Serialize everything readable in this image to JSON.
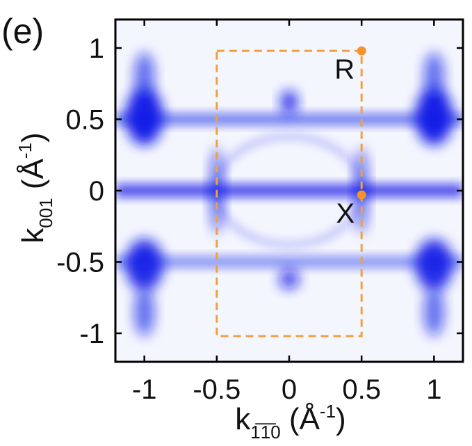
{
  "panel_label": "(e)",
  "colors": {
    "map": "#0a14e6",
    "bz": "#f0a040",
    "points": "#f5922a",
    "axis": "#000000"
  },
  "chart_data": {
    "type": "heatmap",
    "title": "",
    "xlabel": {
      "main": "k",
      "sub": "1̅1̅0",
      "unit": " (Å",
      "sup": "-1",
      "close": ")"
    },
    "ylabel": {
      "main": "k",
      "sub": "001",
      "unit": " (Å",
      "sup": "-1",
      "close": ")"
    },
    "xlim": [
      -1.2,
      1.2
    ],
    "ylim": [
      -1.2,
      1.2
    ],
    "xticks": [
      -1,
      -0.5,
      0,
      0.5,
      1
    ],
    "yticks": [
      1,
      0.5,
      0,
      -0.5,
      -1
    ],
    "xtick_labels": [
      "-1",
      "-0.5",
      "0",
      "0.5",
      "1"
    ],
    "ytick_labels": [
      "1",
      "0.5",
      "0",
      "-0.5",
      "-1"
    ],
    "brillouin_zone": {
      "x_range": [
        -0.5,
        0.5
      ],
      "y_range": [
        -1.02,
        0.98
      ],
      "style": "dashed"
    },
    "high_symmetry_points": [
      {
        "label": "R",
        "x": 0.5,
        "y": 0.98
      },
      {
        "label": "X",
        "x": 0.5,
        "y": -0.03
      }
    ],
    "intensity_features": [
      {
        "kind": "hband",
        "y": 0.5,
        "width": 0.08,
        "x_range": [
          -1.2,
          1.2
        ],
        "intensity": 0.55
      },
      {
        "kind": "hband",
        "y": -0.5,
        "width": 0.08,
        "x_range": [
          -1.2,
          1.2
        ],
        "intensity": 0.45
      },
      {
        "kind": "hband",
        "y": 0.0,
        "width": 0.09,
        "x_range": [
          -1.2,
          1.2
        ],
        "intensity": 0.75
      },
      {
        "kind": "spot",
        "x": -1.0,
        "y": 0.52,
        "rx": 0.13,
        "ry": 0.2,
        "intensity": 0.95
      },
      {
        "kind": "spot",
        "x": 1.0,
        "y": 0.52,
        "rx": 0.13,
        "ry": 0.2,
        "intensity": 0.95
      },
      {
        "kind": "spot",
        "x": -1.0,
        "y": -0.52,
        "rx": 0.13,
        "ry": 0.18,
        "intensity": 0.9
      },
      {
        "kind": "spot",
        "x": 1.0,
        "y": -0.52,
        "rx": 0.13,
        "ry": 0.18,
        "intensity": 0.9
      },
      {
        "kind": "spot",
        "x": -1.0,
        "y": 0.8,
        "rx": 0.07,
        "ry": 0.17,
        "intensity": 0.6
      },
      {
        "kind": "spot",
        "x": 1.0,
        "y": 0.8,
        "rx": 0.07,
        "ry": 0.17,
        "intensity": 0.6
      },
      {
        "kind": "spot",
        "x": -1.0,
        "y": -0.85,
        "rx": 0.07,
        "ry": 0.17,
        "intensity": 0.6
      },
      {
        "kind": "spot",
        "x": 1.0,
        "y": -0.85,
        "rx": 0.07,
        "ry": 0.17,
        "intensity": 0.6
      },
      {
        "kind": "spot",
        "x": 0.0,
        "y": 0.62,
        "rx": 0.06,
        "ry": 0.08,
        "intensity": 0.85
      },
      {
        "kind": "spot",
        "x": 0.0,
        "y": -0.62,
        "rx": 0.07,
        "ry": 0.07,
        "intensity": 0.75
      },
      {
        "kind": "spot",
        "x": -0.5,
        "y": 0.0,
        "rx": 0.05,
        "ry": 0.3,
        "intensity": 0.55
      },
      {
        "kind": "spot",
        "x": 0.5,
        "y": 0.0,
        "rx": 0.05,
        "ry": 0.3,
        "intensity": 0.55
      },
      {
        "kind": "ring",
        "x": 0.0,
        "y": 0.0,
        "rx": 0.5,
        "ry": 0.38,
        "intensity": 0.35
      }
    ]
  }
}
